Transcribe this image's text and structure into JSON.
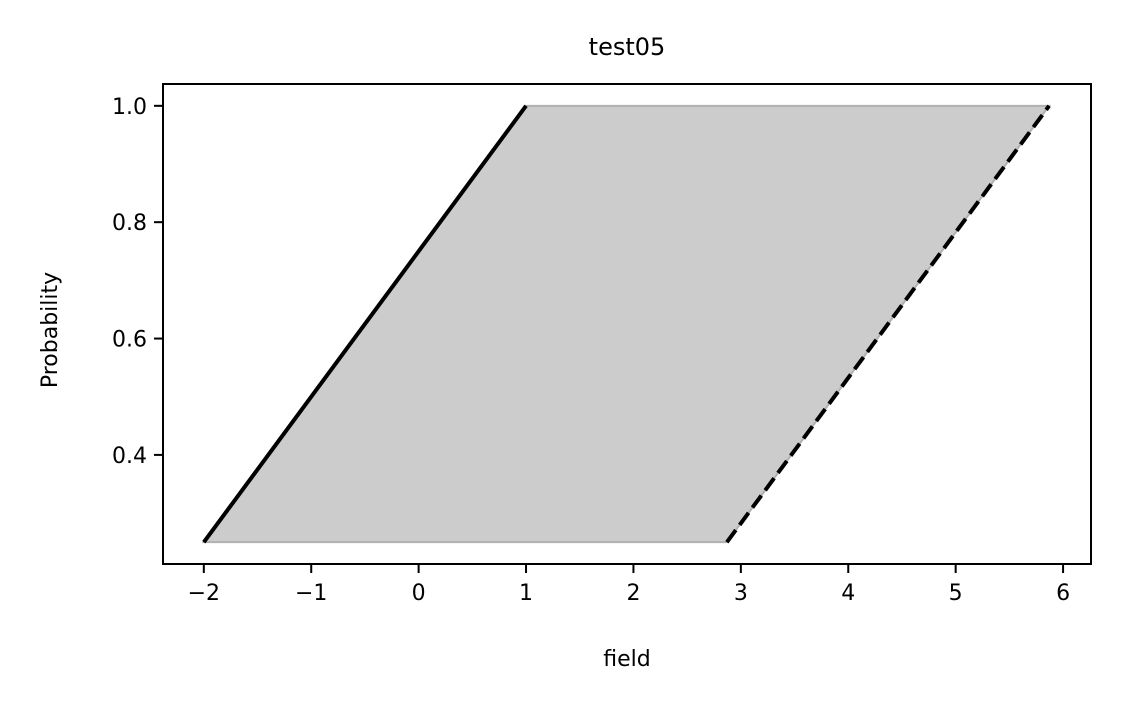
{
  "chart_data": {
    "type": "area",
    "title": "test05",
    "xlabel": "field",
    "ylabel": "Probability",
    "xlim": [
      -2.38,
      6.26
    ],
    "ylim": [
      0.2125,
      1.0375
    ],
    "xticks": [
      -2,
      -1,
      0,
      1,
      2,
      3,
      4,
      5,
      6
    ],
    "xtick_labels": [
      "−2",
      "−1",
      "0",
      "1",
      "2",
      "3",
      "4",
      "5",
      "6"
    ],
    "yticks": [
      0.4,
      0.6,
      0.8,
      1.0
    ],
    "ytick_labels": [
      "0.4",
      "0.6",
      "0.8",
      "1.0"
    ],
    "grid": false,
    "series": [
      {
        "style": "solid",
        "color": "#000000",
        "x": [
          -2.0,
          1.0
        ],
        "y": [
          0.25,
          1.0
        ]
      },
      {
        "style": "dashed",
        "color": "#000000",
        "x": [
          2.87,
          5.87
        ],
        "y": [
          0.25,
          1.0
        ]
      }
    ],
    "fill": {
      "color": "#cccccc",
      "edge_color": "#b0b0b0",
      "x": [
        -2.0,
        1.0,
        5.87,
        2.87
      ],
      "y": [
        0.25,
        1.0,
        1.0,
        0.25
      ]
    }
  }
}
